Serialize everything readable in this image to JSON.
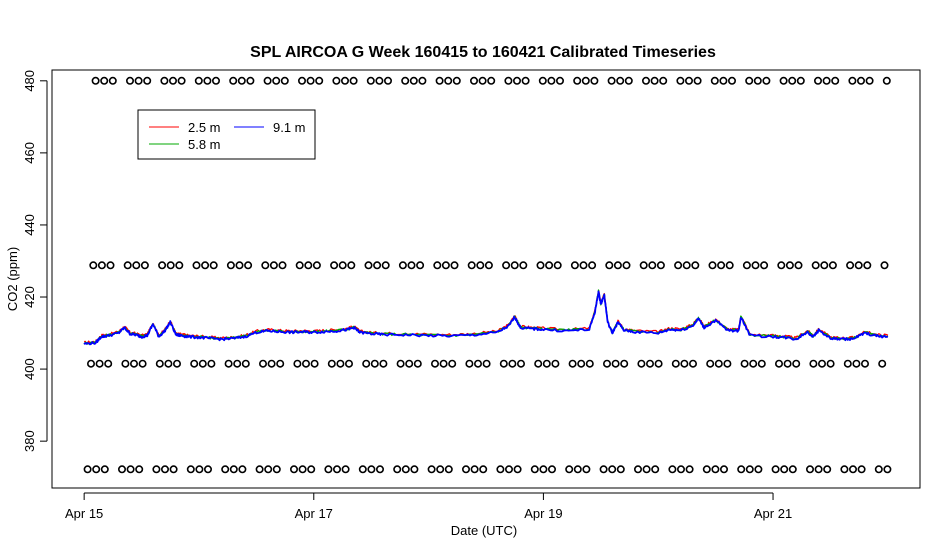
{
  "chart_data": {
    "type": "line",
    "title": "SPL AIRCOA G  Week 160415 to 160421  Calibrated Timeseries",
    "xlabel": "Date (UTC)",
    "ylabel": "CO2 (ppm)",
    "x_ticks": [
      "Apr 15",
      "Apr 17",
      "Apr 19",
      "Apr 21"
    ],
    "x_tick_values": [
      0,
      2,
      4,
      6
    ],
    "xlim": [
      -0.28,
      7.28
    ],
    "y_ticks": [
      380,
      400,
      420,
      440,
      460,
      480
    ],
    "ylim": [
      367,
      483
    ],
    "grid": false,
    "legend_position": "top-left",
    "series": [
      {
        "name": "2.5 m",
        "color": "#ff0000"
      },
      {
        "name": "5.8 m",
        "color": "#00aa00"
      },
      {
        "name": "9.1 m",
        "color": "#0000ff"
      }
    ],
    "line_x_days": [
      0.0,
      0.1,
      0.15,
      0.2,
      0.3,
      0.35,
      0.4,
      0.45,
      0.5,
      0.55,
      0.6,
      0.65,
      0.7,
      0.75,
      0.8,
      0.85,
      0.9,
      1.0,
      1.1,
      1.2,
      1.3,
      1.4,
      1.5,
      1.6,
      1.7,
      1.8,
      1.9,
      2.0,
      2.1,
      2.2,
      2.3,
      2.35,
      2.4,
      2.5,
      2.6,
      2.8,
      3.0,
      3.2,
      3.4,
      3.6,
      3.7,
      3.75,
      3.8,
      3.9,
      4.0,
      4.2,
      4.4,
      4.45,
      4.48,
      4.5,
      4.53,
      4.56,
      4.6,
      4.65,
      4.7,
      4.8,
      5.0,
      5.1,
      5.2,
      5.3,
      5.35,
      5.4,
      5.5,
      5.6,
      5.7,
      5.72,
      5.8,
      6.0,
      6.1,
      6.2,
      6.3,
      6.35,
      6.4,
      6.5,
      6.6,
      6.7,
      6.8,
      6.9,
      7.0
    ],
    "line_y_ppm": [
      407,
      407.3,
      409,
      409.2,
      410,
      411.5,
      409.8,
      409.5,
      409,
      409.3,
      412.5,
      409,
      410.5,
      413,
      409.5,
      409.3,
      409,
      408.8,
      408.5,
      408.3,
      408.5,
      409,
      410.2,
      410.6,
      410.4,
      410.2,
      410.3,
      410.2,
      410.4,
      410.6,
      411,
      411.5,
      410.2,
      409.8,
      409.6,
      409.5,
      409.3,
      409.2,
      409.5,
      410.2,
      412,
      414.5,
      411.5,
      411.2,
      411,
      410.6,
      411,
      416,
      421.5,
      418,
      420.5,
      413,
      410,
      413,
      410.8,
      410.3,
      410,
      411,
      410.8,
      412,
      414,
      411.5,
      413.5,
      410.8,
      410.6,
      414.5,
      409.3,
      409,
      408.8,
      408.3,
      410.3,
      409,
      410.8,
      408.5,
      408.3,
      408.4,
      410,
      409.2,
      409
    ],
    "markers": [
      {
        "y": 480,
        "x_start": 0.1,
        "x_end": 7.0
      },
      {
        "y": 428.8,
        "x_start": 0.08,
        "x_end": 7.0
      },
      {
        "y": 401.5,
        "x_start": 0.06,
        "x_end": 7.0
      },
      {
        "y": 372.2,
        "x_start": 0.03,
        "x_end": 7.0
      }
    ]
  }
}
